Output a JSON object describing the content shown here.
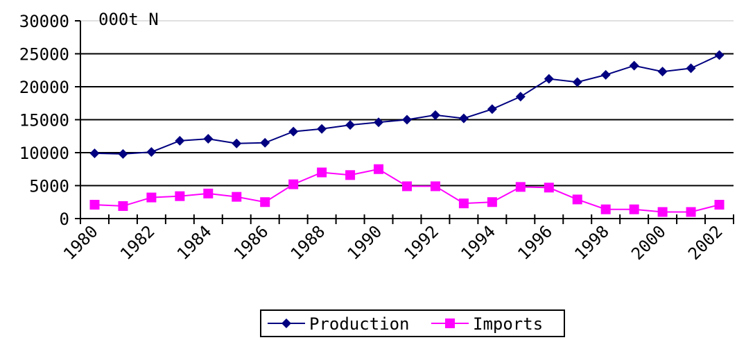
{
  "chart_data": {
    "type": "line",
    "unit_label": "000t N",
    "x": [
      1980,
      1981,
      1982,
      1983,
      1984,
      1985,
      1986,
      1987,
      1988,
      1989,
      1990,
      1991,
      1992,
      1993,
      1994,
      1995,
      1996,
      1997,
      1998,
      1999,
      2000,
      2001,
      2002
    ],
    "x_tick_labels": [
      "1980",
      "1982",
      "1984",
      "1986",
      "1988",
      "1990",
      "1992",
      "1994",
      "1996",
      "1998",
      "2000",
      "2002"
    ],
    "y_tick_labels": [
      "0",
      "5000",
      "10000",
      "15000",
      "20000",
      "25000",
      "30000"
    ],
    "ylim": [
      0,
      30000
    ],
    "grid": true,
    "legend_position": "bottom-center",
    "series": [
      {
        "name": "Production",
        "color": "#000080",
        "marker": "diamond",
        "values": [
          9900,
          9800,
          10100,
          11800,
          12100,
          11400,
          11500,
          13200,
          13600,
          14200,
          14600,
          15000,
          15700,
          15200,
          16600,
          18500,
          21200,
          20700,
          21800,
          23200,
          22300,
          22800,
          24800
        ]
      },
      {
        "name": "Imports",
        "color": "#ff00ff",
        "marker": "square",
        "values": [
          2100,
          1900,
          3200,
          3400,
          3800,
          3300,
          2500,
          5200,
          7000,
          6600,
          7500,
          4900,
          4900,
          2300,
          2500,
          4800,
          4700,
          2900,
          1400,
          1400,
          1000,
          1000,
          2100
        ]
      }
    ]
  }
}
